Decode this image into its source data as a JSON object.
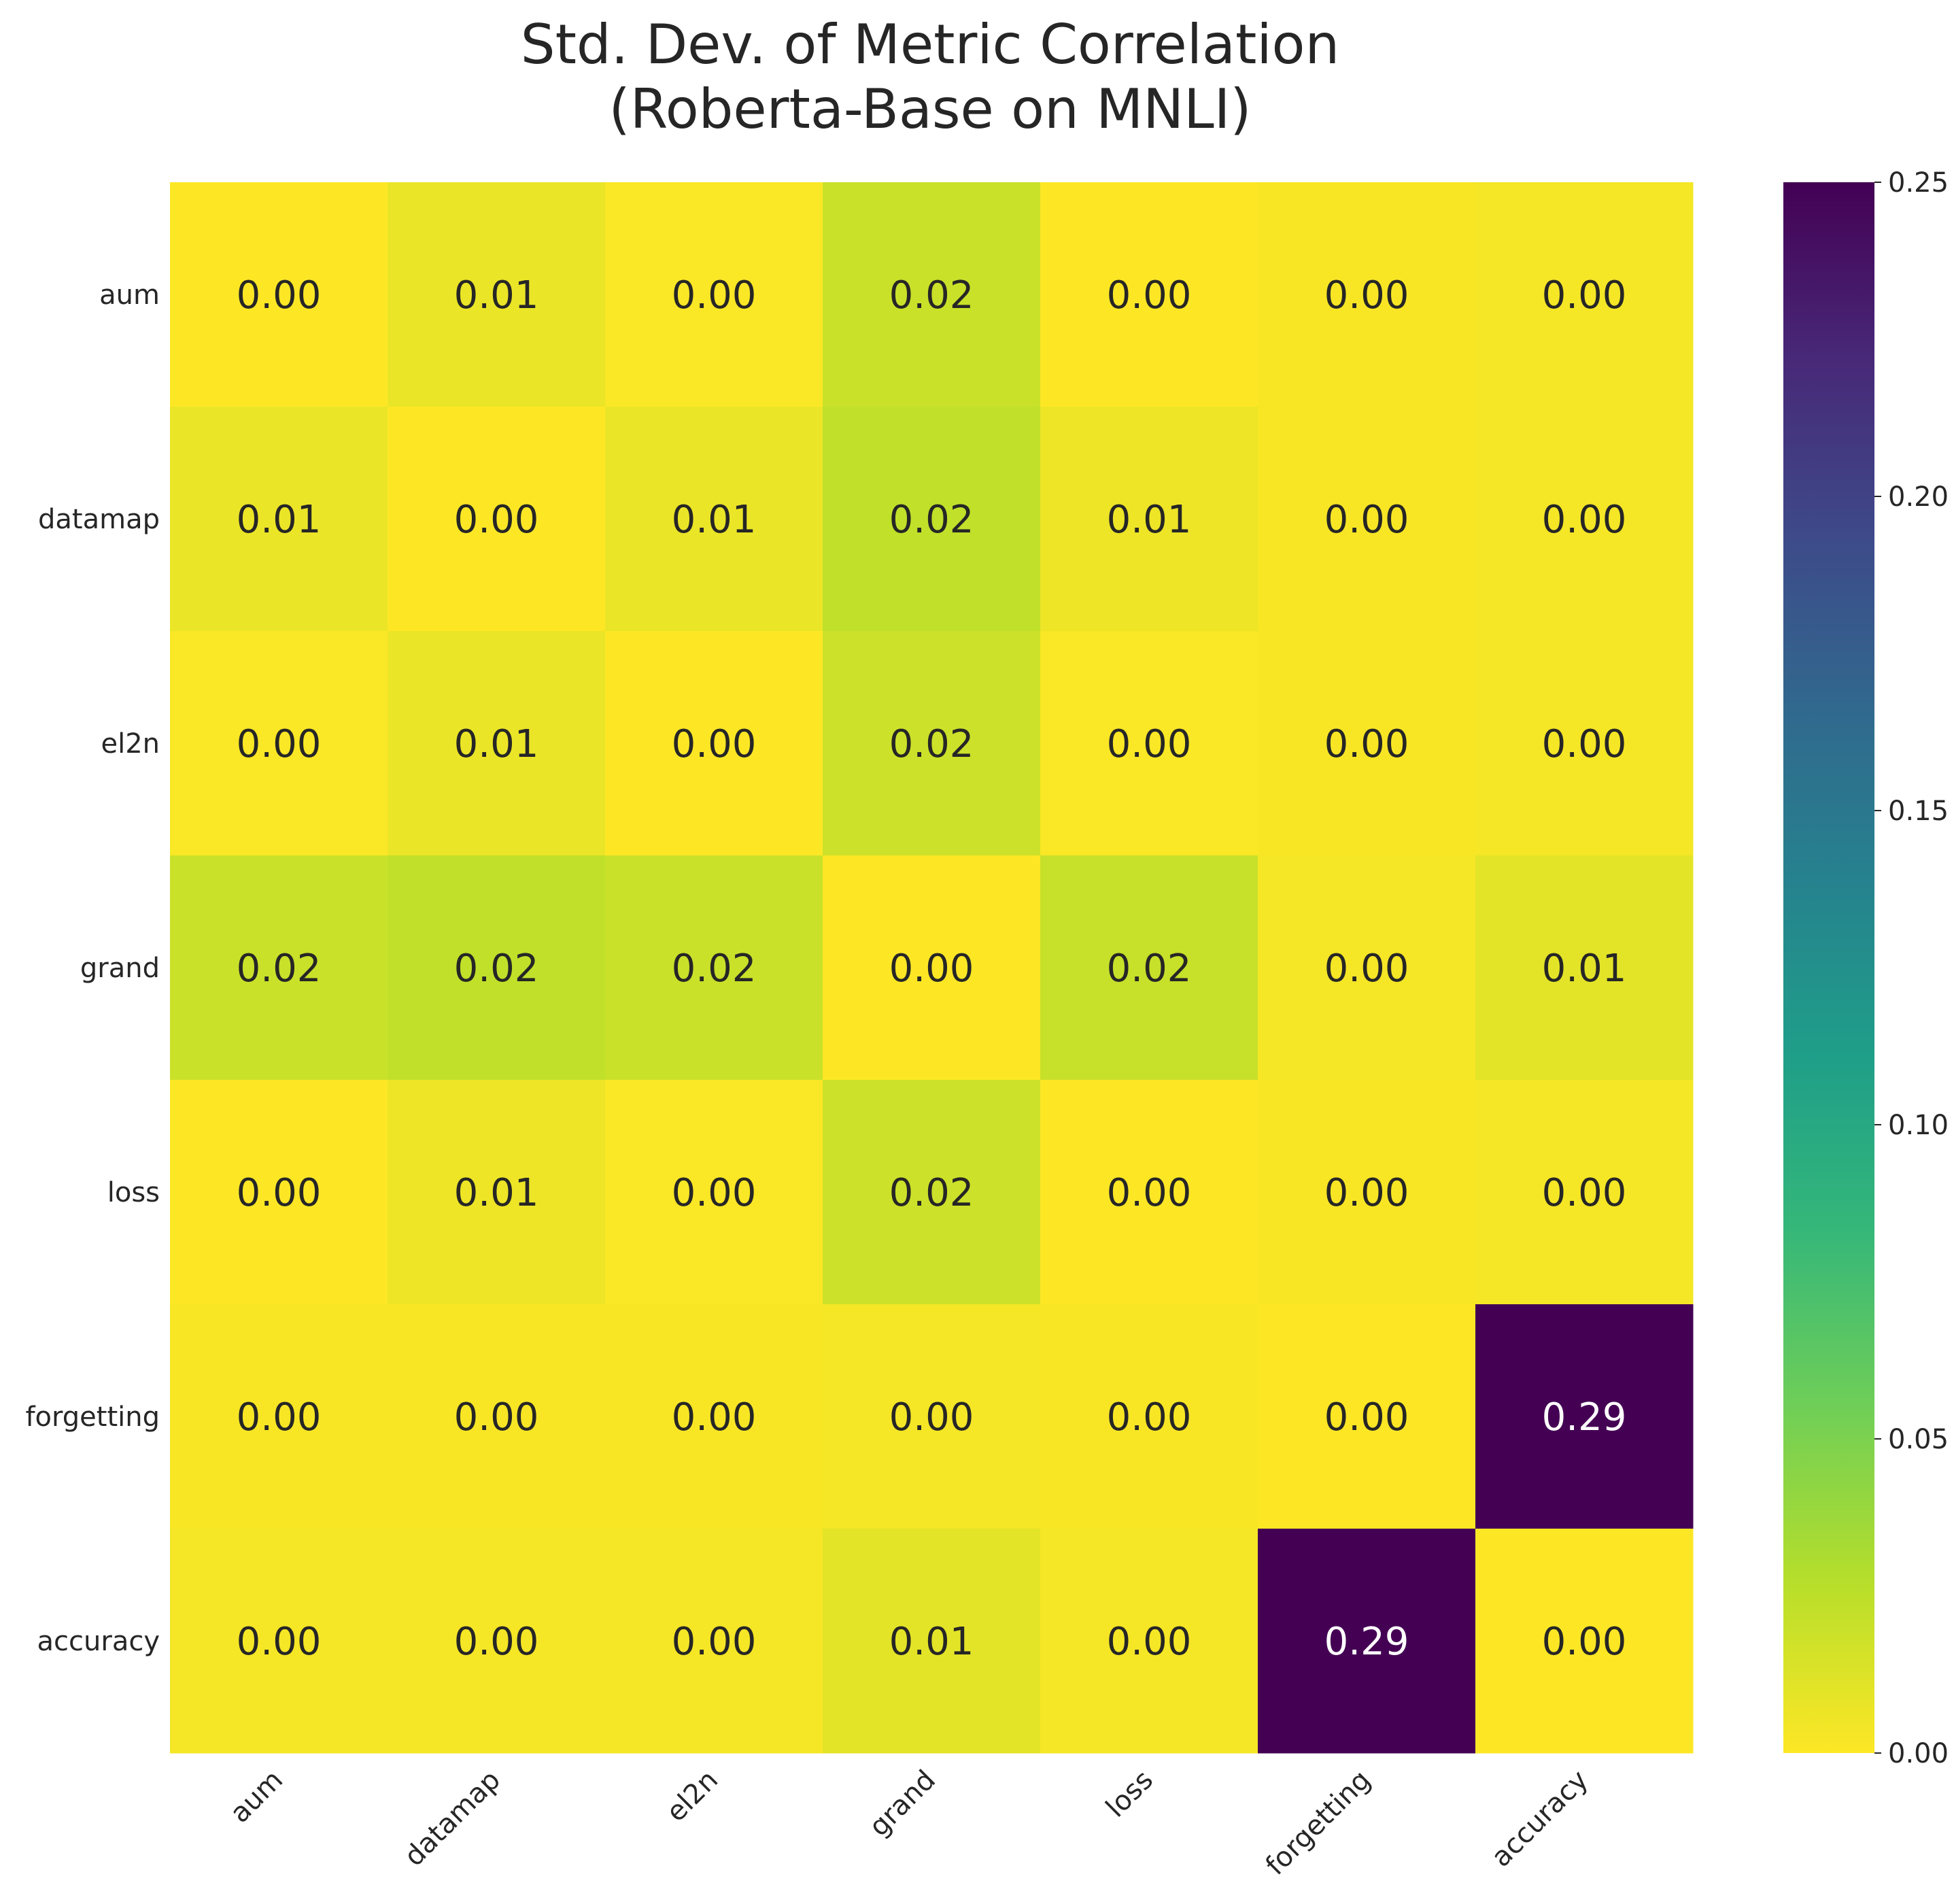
{
  "chart_data": {
    "type": "heatmap",
    "title_lines": [
      "Std. Dev. of Metric Correlation",
      "(Roberta-Base on MNLI)"
    ],
    "x_labels": [
      "aum",
      "datamap",
      "el2n",
      "grand",
      "loss",
      "forgetting",
      "accuracy"
    ],
    "y_labels": [
      "aum",
      "datamap",
      "el2n",
      "grand",
      "loss",
      "forgetting",
      "accuracy"
    ],
    "values": [
      [
        0.0,
        0.007,
        0.001,
        0.02,
        0.0,
        0.002,
        0.003
      ],
      [
        0.007,
        0.0,
        0.007,
        0.023,
        0.006,
        0.002,
        0.003
      ],
      [
        0.001,
        0.007,
        0.0,
        0.019,
        0.001,
        0.002,
        0.003
      ],
      [
        0.02,
        0.023,
        0.02,
        0.0,
        0.021,
        0.003,
        0.01
      ],
      [
        0.0,
        0.006,
        0.001,
        0.019,
        0.0,
        0.002,
        0.003
      ],
      [
        0.002,
        0.002,
        0.002,
        0.003,
        0.002,
        0.0,
        0.29
      ],
      [
        0.003,
        0.003,
        0.003,
        0.01,
        0.003,
        0.29,
        0.0
      ]
    ],
    "value_format_decimals": 2,
    "colormap": "viridis_r",
    "color_range": [
      0.0,
      0.25
    ],
    "colorbar_ticks": [
      "0.00",
      "0.05",
      "0.10",
      "0.15",
      "0.20",
      "0.25"
    ],
    "colorbar_tick_values": [
      0.0,
      0.05,
      0.1,
      0.15,
      0.2,
      0.25
    ],
    "colors": [
      "#fde725",
      "#b5de2b",
      "#6ece58",
      "#35b779",
      "#1f9e89",
      "#26828e",
      "#31688e",
      "#3e4989",
      "#482878",
      "#440154"
    ]
  }
}
